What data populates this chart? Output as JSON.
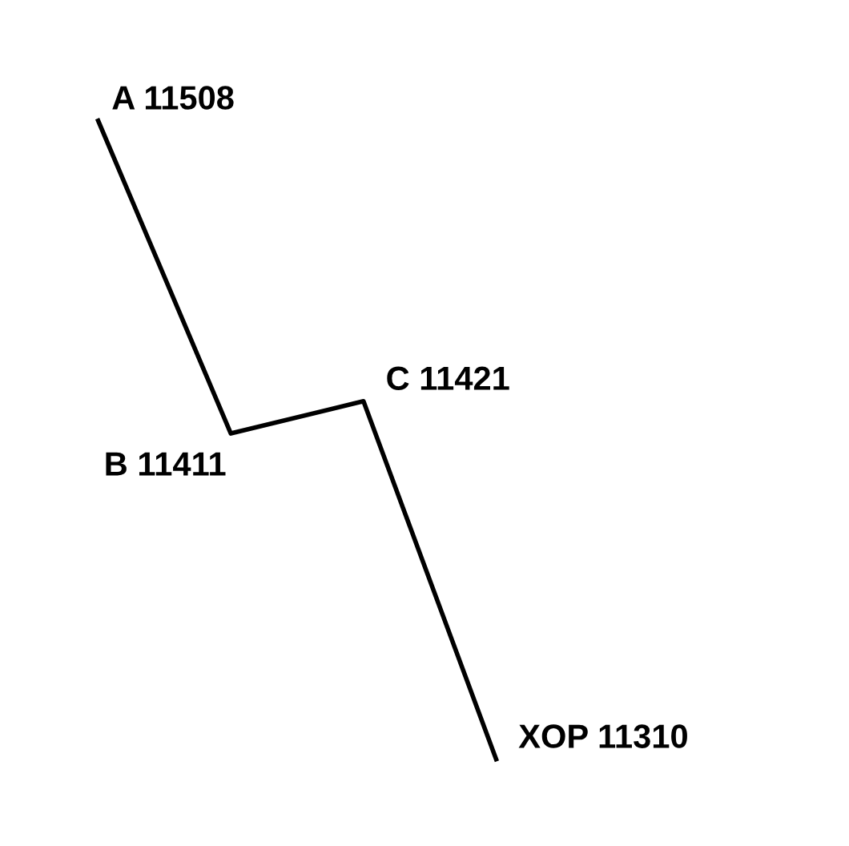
{
  "chart_data": {
    "type": "line",
    "categories": [
      null,
      null,
      null,
      null
    ],
    "series": [
      {
        "color": "#000000",
        "values": [
          11508,
          11411,
          11421,
          11310
        ],
        "value_labels": [
          "A 11508",
          "B 11411",
          "C 11421",
          "XOP 11310"
        ]
      }
    ],
    "marker": "none",
    "line_style": "solid"
  }
}
